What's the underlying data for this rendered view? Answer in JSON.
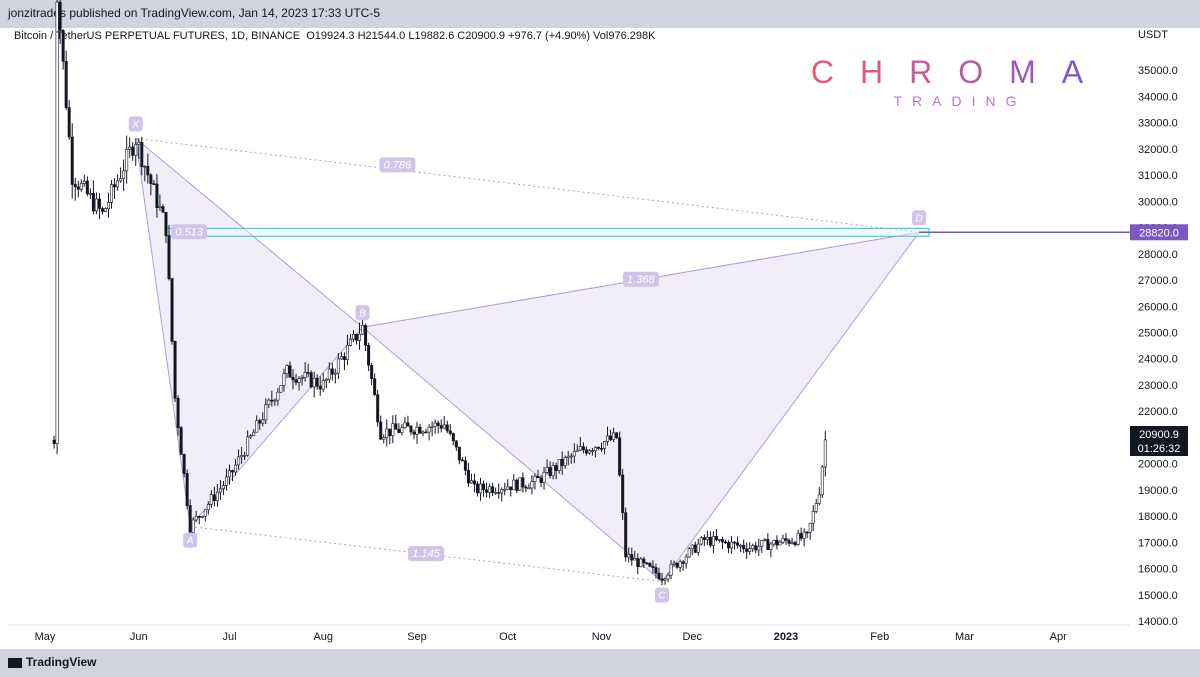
{
  "header": {
    "published": "jonzitrades published on TradingView.com, Jan 14, 2023 17:33 UTC-5"
  },
  "symbol": {
    "description": "Bitcoin / TetherUS PERPETUAL FUTURES, 1D, BINANCE",
    "ohlc": "O19924.3  H21544.0  L19882.6  C20900.9  +976.7 (+4.90%)  Vol976.298K"
  },
  "brand": {
    "name": "CHROMA",
    "sub": "TRADING",
    "colors": [
      "#e85a7a",
      "#c05aa0",
      "#6a56d6"
    ]
  },
  "footer": {
    "logo": "TradingView"
  },
  "chart_data": {
    "type": "candlestick",
    "currency_label": "USDT",
    "y_axis": {
      "ticks": [
        "35000.0",
        "34000.0",
        "33000.0",
        "32000.0",
        "31000.0",
        "30000.0",
        "29000.0",
        "28000.0",
        "27000.0",
        "26000.0",
        "25000.0",
        "24000.0",
        "23000.0",
        "22000.0",
        "21000.0",
        "20000.0",
        "19000.0",
        "18000.0",
        "17000.0",
        "16000.0",
        "15000.0",
        "14000.0"
      ],
      "range": [
        14000,
        36000
      ]
    },
    "x_axis": {
      "ticks": [
        "May",
        "Jun",
        "Jul",
        "Aug",
        "Sep",
        "Oct",
        "Nov",
        "Dec",
        "2023",
        "Feb",
        "Mar",
        "Apr"
      ]
    },
    "last_price": {
      "value": "20900.9",
      "countdown": "01:26:32"
    },
    "target_price": "28820.0",
    "pattern": {
      "points": [
        {
          "label": "X",
          "date": "2022-05-31",
          "price": 32400
        },
        {
          "label": "A",
          "date": "2022-06-18",
          "price": 17600
        },
        {
          "label": "B",
          "date": "2022-08-14",
          "price": 25200
        },
        {
          "label": "C",
          "date": "2022-11-21",
          "price": 15500
        },
        {
          "label": "D",
          "date": "2023-02-14",
          "price": 28820
        }
      ],
      "ratios": [
        {
          "label": "0.513",
          "from": "X",
          "to": "B"
        },
        {
          "label": "0.786",
          "from": "X",
          "to": "D"
        },
        {
          "label": "1.368",
          "from": "B",
          "to": "D"
        },
        {
          "label": "1.145",
          "from": "A",
          "to": "C"
        }
      ],
      "colors": {
        "fill": "#ede7f6",
        "line": "#b39ddb",
        "label_bg": "#d1c4e9",
        "label_text": "#ffffff",
        "target_line": "#7e57c2",
        "zone": "#26c6da"
      }
    }
  }
}
